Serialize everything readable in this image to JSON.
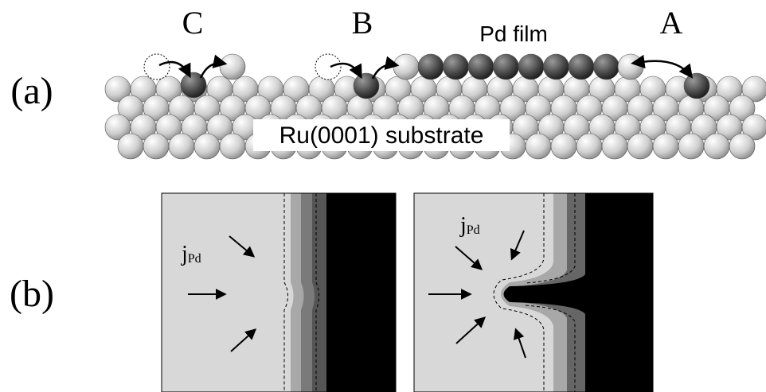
{
  "panel_a": {
    "label": "(a)",
    "sites": [
      "C",
      "B",
      "A"
    ],
    "film_label": "Pd film",
    "substrate_label": "Ru(0001) substrate"
  },
  "panel_b": {
    "label": "(b)",
    "flux_labels": [
      {
        "symbol": "j",
        "subscript": "Pd"
      },
      {
        "symbol": "j",
        "subscript": "Pd"
      }
    ]
  }
}
